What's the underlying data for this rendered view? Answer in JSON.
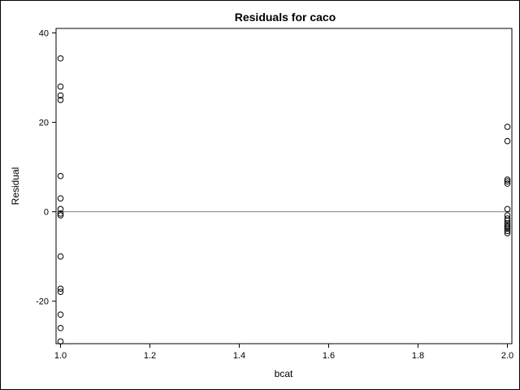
{
  "chart_data": {
    "type": "scatter",
    "title": "Residuals for caco",
    "xlabel": "bcat",
    "ylabel": "Residual",
    "xlim": [
      0.99,
      2.01
    ],
    "ylim": [
      -29.5,
      41
    ],
    "x_ticks": [
      "1.0",
      "1.2",
      "1.4",
      "1.6",
      "1.8",
      "2.0"
    ],
    "y_ticks": [
      "-20",
      "0",
      "20",
      "40"
    ],
    "reference_line_y": 0,
    "grid": false,
    "marker_color": "#000000",
    "reference_line_color": "#808080",
    "series": [
      {
        "points": [
          {
            "x": 1.0,
            "y": 34.3
          },
          {
            "x": 1.0,
            "y": 28.0
          },
          {
            "x": 1.0,
            "y": 26.0
          },
          {
            "x": 1.0,
            "y": 25.0
          },
          {
            "x": 1.0,
            "y": 8.0
          },
          {
            "x": 1.0,
            "y": 3.0
          },
          {
            "x": 1.0,
            "y": 0.6
          },
          {
            "x": 1.0,
            "y": -0.4
          },
          {
            "x": 1.0,
            "y": -0.8
          },
          {
            "x": 1.0,
            "y": -10.0
          },
          {
            "x": 1.0,
            "y": -17.2
          },
          {
            "x": 1.0,
            "y": -17.9
          },
          {
            "x": 1.0,
            "y": -23.0
          },
          {
            "x": 1.0,
            "y": -26.0
          },
          {
            "x": 1.0,
            "y": -29.0
          },
          {
            "x": 2.0,
            "y": 19.0
          },
          {
            "x": 2.0,
            "y": 15.8
          },
          {
            "x": 2.0,
            "y": 7.2
          },
          {
            "x": 2.0,
            "y": 6.8
          },
          {
            "x": 2.0,
            "y": 6.3
          },
          {
            "x": 2.0,
            "y": 0.6
          },
          {
            "x": 2.0,
            "y": -0.8
          },
          {
            "x": 2.0,
            "y": -1.5
          },
          {
            "x": 2.0,
            "y": -2.0
          },
          {
            "x": 2.0,
            "y": -2.6
          },
          {
            "x": 2.0,
            "y": -3.0
          },
          {
            "x": 2.0,
            "y": -3.4
          },
          {
            "x": 2.0,
            "y": -3.8
          },
          {
            "x": 2.0,
            "y": -4.3
          },
          {
            "x": 2.0,
            "y": -4.8
          }
        ]
      }
    ]
  }
}
